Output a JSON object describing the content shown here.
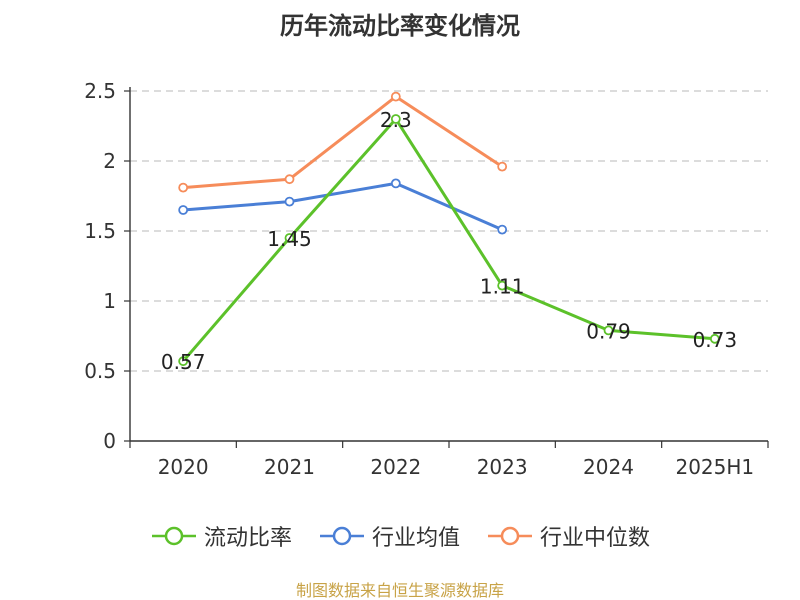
{
  "title": "历年流动比率变化情况",
  "footer": "制图数据来自恒生聚源数据库",
  "colors": {
    "footer": "#c8a347",
    "axis": "#333333",
    "grid": "#c8c8c8"
  },
  "chart_data": {
    "type": "line",
    "title": "历年流动比率变化情况",
    "xlabel": "",
    "ylabel": "",
    "categories": [
      "2020",
      "2021",
      "2022",
      "2023",
      "2024",
      "2025H1"
    ],
    "ylim": [
      0,
      2.5
    ],
    "yticks": [
      "0",
      "0.5",
      "1",
      "1.5",
      "2",
      "2.5"
    ],
    "grid": true,
    "legend_position": "bottom",
    "series": [
      {
        "name": "流动比率",
        "color": "#5cc12a",
        "values": [
          0.57,
          1.45,
          2.3,
          1.11,
          0.79,
          0.73
        ],
        "labels": [
          "0.57",
          "1.45",
          "2.3",
          "1.11",
          "0.79",
          "0.73"
        ]
      },
      {
        "name": "行业均值",
        "color": "#4a7fd6",
        "values": [
          1.65,
          1.71,
          1.84,
          1.51,
          null,
          null
        ]
      },
      {
        "name": "行业中位数",
        "color": "#f68c5a",
        "values": [
          1.81,
          1.87,
          2.46,
          1.96,
          null,
          null
        ]
      }
    ]
  }
}
